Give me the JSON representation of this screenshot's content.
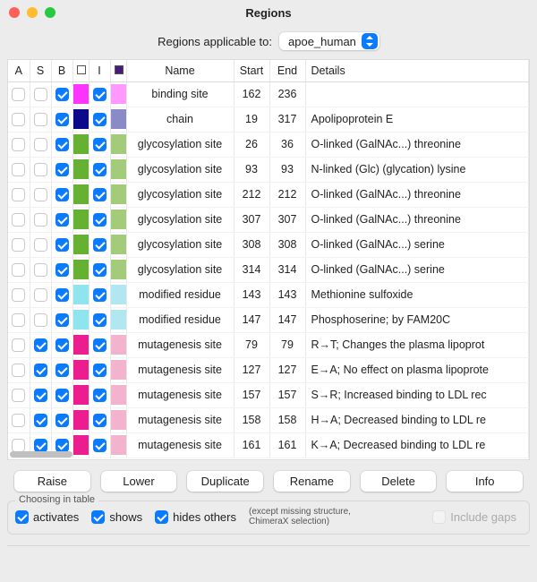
{
  "window": {
    "title": "Regions"
  },
  "applicable": {
    "label": "Regions applicable to:",
    "selected": "apoe_human"
  },
  "columns": {
    "A": "A",
    "S": "S",
    "B": "B",
    "I": "I",
    "Name": "Name",
    "Start": "Start",
    "End": "End",
    "Details": "Details",
    "header_swatch1": "#ffffff",
    "header_swatch2": "#4a1a7a"
  },
  "rows": [
    {
      "A": false,
      "S": false,
      "B": true,
      "c1": "#ff33ff",
      "I": true,
      "c2": "#ff99ff",
      "name": "binding site",
      "start": "162",
      "end": "236",
      "details": ""
    },
    {
      "A": false,
      "S": false,
      "B": true,
      "c1": "#0a0a8a",
      "I": true,
      "c2": "#8a8ac7",
      "name": "chain",
      "start": "19",
      "end": "317",
      "details": "Apolipoprotein E"
    },
    {
      "A": false,
      "S": false,
      "B": true,
      "c1": "#66b032",
      "I": true,
      "c2": "#a3cc7a",
      "name": "glycosylation site",
      "start": "26",
      "end": "36",
      "details": "O-linked (GalNAc...) threonine"
    },
    {
      "A": false,
      "S": false,
      "B": true,
      "c1": "#66b032",
      "I": true,
      "c2": "#a3cc7a",
      "name": "glycosylation site",
      "start": "93",
      "end": "93",
      "details": "N-linked (Glc) (glycation) lysine"
    },
    {
      "A": false,
      "S": false,
      "B": true,
      "c1": "#66b032",
      "I": true,
      "c2": "#a3cc7a",
      "name": "glycosylation site",
      "start": "212",
      "end": "212",
      "details": "O-linked (GalNAc...) threonine"
    },
    {
      "A": false,
      "S": false,
      "B": true,
      "c1": "#66b032",
      "I": true,
      "c2": "#a3cc7a",
      "name": "glycosylation site",
      "start": "307",
      "end": "307",
      "details": "O-linked (GalNAc...) threonine"
    },
    {
      "A": false,
      "S": false,
      "B": true,
      "c1": "#66b032",
      "I": true,
      "c2": "#a3cc7a",
      "name": "glycosylation site",
      "start": "308",
      "end": "308",
      "details": "O-linked (GalNAc...) serine"
    },
    {
      "A": false,
      "S": false,
      "B": true,
      "c1": "#66b032",
      "I": true,
      "c2": "#a3cc7a",
      "name": "glycosylation site",
      "start": "314",
      "end": "314",
      "details": "O-linked (GalNAc...) serine"
    },
    {
      "A": false,
      "S": false,
      "B": true,
      "c1": "#8ee5ee",
      "I": true,
      "c2": "#b0e7f0",
      "name": "modified residue",
      "start": "143",
      "end": "143",
      "details": "Methionine sulfoxide"
    },
    {
      "A": false,
      "S": false,
      "B": true,
      "c1": "#8ee5ee",
      "I": true,
      "c2": "#b0e7f0",
      "name": "modified residue",
      "start": "147",
      "end": "147",
      "details": "Phosphoserine; by FAM20C"
    },
    {
      "A": false,
      "S": true,
      "B": true,
      "c1": "#ec1d8e",
      "I": true,
      "c2": "#f3b3cf",
      "name": "mutagenesis site",
      "start": "79",
      "end": "79",
      "details": "R→T; Changes the plasma lipoprot"
    },
    {
      "A": false,
      "S": true,
      "B": true,
      "c1": "#ec1d8e",
      "I": true,
      "c2": "#f3b3cf",
      "name": "mutagenesis site",
      "start": "127",
      "end": "127",
      "details": "E→A; No effect on plasma lipoprote"
    },
    {
      "A": false,
      "S": true,
      "B": true,
      "c1": "#ec1d8e",
      "I": true,
      "c2": "#f3b3cf",
      "name": "mutagenesis site",
      "start": "157",
      "end": "157",
      "details": "S→R; Increased binding to LDL rec"
    },
    {
      "A": false,
      "S": true,
      "B": true,
      "c1": "#ec1d8e",
      "I": true,
      "c2": "#f3b3cf",
      "name": "mutagenesis site",
      "start": "158",
      "end": "158",
      "details": "H→A; Decreased binding to LDL re"
    },
    {
      "A": false,
      "S": true,
      "B": true,
      "c1": "#ec1d8e",
      "I": true,
      "c2": "#f3b3cf",
      "name": "mutagenesis site",
      "start": "161",
      "end": "161",
      "details": "K→A; Decreased binding to LDL re"
    }
  ],
  "buttons": {
    "raise": "Raise",
    "lower": "Lower",
    "duplicate": "Duplicate",
    "rename": "Rename",
    "delete": "Delete",
    "info": "Info"
  },
  "choosing": {
    "legend": "Choosing in table",
    "activates": {
      "checked": true,
      "label": "activates"
    },
    "shows": {
      "checked": true,
      "label": "shows"
    },
    "hides": {
      "checked": true,
      "label": "hides others"
    },
    "note": "(except missing structure,\nChimeraX selection)",
    "include_gaps": {
      "checked": false,
      "label": "Include gaps"
    }
  }
}
